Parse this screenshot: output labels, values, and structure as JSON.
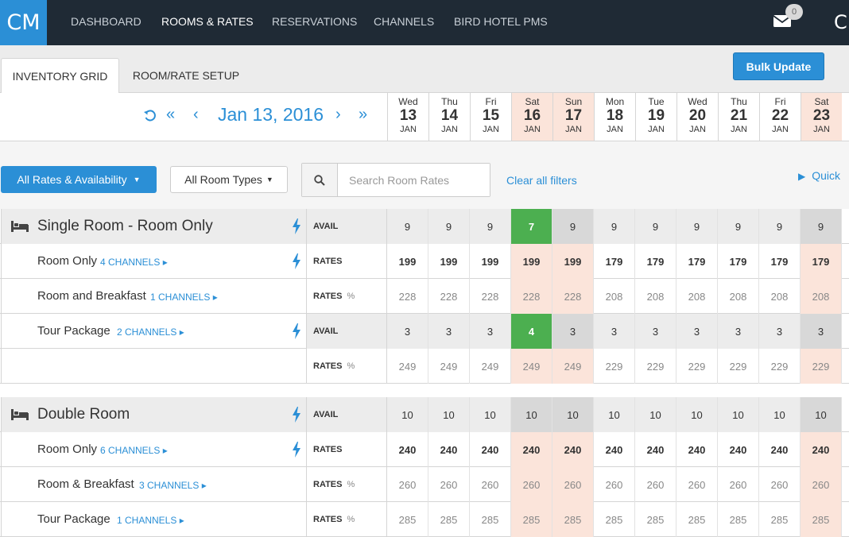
{
  "app": {
    "logo": "CM",
    "nav": [
      "DASHBOARD",
      "ROOMS & RATES",
      "RESERVATIONS",
      "CHANNELS",
      "BIRD HOTEL PMS"
    ],
    "active_nav": "ROOMS & RATES",
    "mail_badge": "0",
    "user_initial": "C"
  },
  "tabs": {
    "inventory": "INVENTORY GRID",
    "setup": "ROOM/RATE SETUP",
    "bulk_update": "Bulk Update"
  },
  "datebar": {
    "current_date": "Jan 13, 2016",
    "days": [
      {
        "dow": "Wed",
        "num": "13",
        "mon": "JAN",
        "weekend": false
      },
      {
        "dow": "Thu",
        "num": "14",
        "mon": "JAN",
        "weekend": false
      },
      {
        "dow": "Fri",
        "num": "15",
        "mon": "JAN",
        "weekend": false
      },
      {
        "dow": "Sat",
        "num": "16",
        "mon": "JAN",
        "weekend": true
      },
      {
        "dow": "Sun",
        "num": "17",
        "mon": "JAN",
        "weekend": true
      },
      {
        "dow": "Mon",
        "num": "18",
        "mon": "JAN",
        "weekend": false
      },
      {
        "dow": "Tue",
        "num": "19",
        "mon": "JAN",
        "weekend": false
      },
      {
        "dow": "Wed",
        "num": "20",
        "mon": "JAN",
        "weekend": false
      },
      {
        "dow": "Thu",
        "num": "21",
        "mon": "JAN",
        "weekend": false
      },
      {
        "dow": "Fri",
        "num": "22",
        "mon": "JAN",
        "weekend": false
      },
      {
        "dow": "Sat",
        "num": "23",
        "mon": "JAN",
        "weekend": true
      }
    ]
  },
  "filters": {
    "rates_availability": "All Rates & Availability",
    "room_types": "All Room Types",
    "search_placeholder": "Search Room Rates",
    "clear": "Clear all filters",
    "quick": "Quick"
  },
  "rooms": [
    {
      "name": "Single Room - Room Only",
      "rows": [
        {
          "kind": "header",
          "label": "",
          "channels": "",
          "type": "AVAIL",
          "bolt": true,
          "values": [
            "9",
            "9",
            "9",
            "7",
            "9",
            "9",
            "9",
            "9",
            "9",
            "9",
            "9"
          ],
          "green": [
            3
          ]
        },
        {
          "kind": "rates-strong",
          "label": "Room Only",
          "channels": "4 CHANNELS ▸",
          "type": "RATES",
          "bolt": true,
          "values": [
            "199",
            "199",
            "199",
            "199",
            "199",
            "179",
            "179",
            "179",
            "179",
            "179",
            "179"
          ],
          "green": []
        },
        {
          "kind": "rates-muted",
          "label": "Room and Breakfast",
          "channels": "1 CHANNELS ▸",
          "type": "RATES",
          "pct": true,
          "bolt": false,
          "values": [
            "228",
            "228",
            "228",
            "228",
            "228",
            "208",
            "208",
            "208",
            "208",
            "208",
            "208"
          ],
          "green": []
        },
        {
          "kind": "avail",
          "label": "Tour Package",
          "channels": "2 CHANNELS ▸",
          "type": "AVAIL",
          "bolt": true,
          "values": [
            "3",
            "3",
            "3",
            "4",
            "3",
            "3",
            "3",
            "3",
            "3",
            "3",
            "3"
          ],
          "green": [
            3
          ]
        },
        {
          "kind": "rates-muted",
          "label": "",
          "channels": "",
          "type": "RATES",
          "pct": true,
          "bolt": false,
          "values": [
            "249",
            "249",
            "249",
            "249",
            "249",
            "229",
            "229",
            "229",
            "229",
            "229",
            "229"
          ],
          "green": []
        }
      ]
    },
    {
      "name": "Double Room",
      "rows": [
        {
          "kind": "header",
          "label": "",
          "channels": "",
          "type": "AVAIL",
          "bolt": true,
          "values": [
            "10",
            "10",
            "10",
            "10",
            "10",
            "10",
            "10",
            "10",
            "10",
            "10",
            "10"
          ],
          "green": []
        },
        {
          "kind": "rates-strong",
          "label": "Room Only",
          "channels": "6 CHANNELS ▸",
          "type": "RATES",
          "bolt": true,
          "values": [
            "240",
            "240",
            "240",
            "240",
            "240",
            "240",
            "240",
            "240",
            "240",
            "240",
            "240"
          ],
          "green": []
        },
        {
          "kind": "rates-muted",
          "label": "Room & Breakfast",
          "channels": "3 CHANNELS ▸",
          "type": "RATES",
          "pct": true,
          "bolt": false,
          "values": [
            "260",
            "260",
            "260",
            "260",
            "260",
            "260",
            "260",
            "260",
            "260",
            "260",
            "260"
          ],
          "green": []
        },
        {
          "kind": "rates-muted",
          "label": "Tour Package",
          "channels": "1 CHANNELS ▸",
          "type": "RATES",
          "pct": true,
          "bolt": false,
          "values": [
            "285",
            "285",
            "285",
            "285",
            "285",
            "285",
            "285",
            "285",
            "285",
            "285",
            "285"
          ],
          "green": []
        }
      ]
    }
  ],
  "colors": {
    "accent": "#2b8fd6",
    "topbar": "#1f2a35",
    "weekend": "#fbe4da",
    "green": "#4caf50"
  }
}
